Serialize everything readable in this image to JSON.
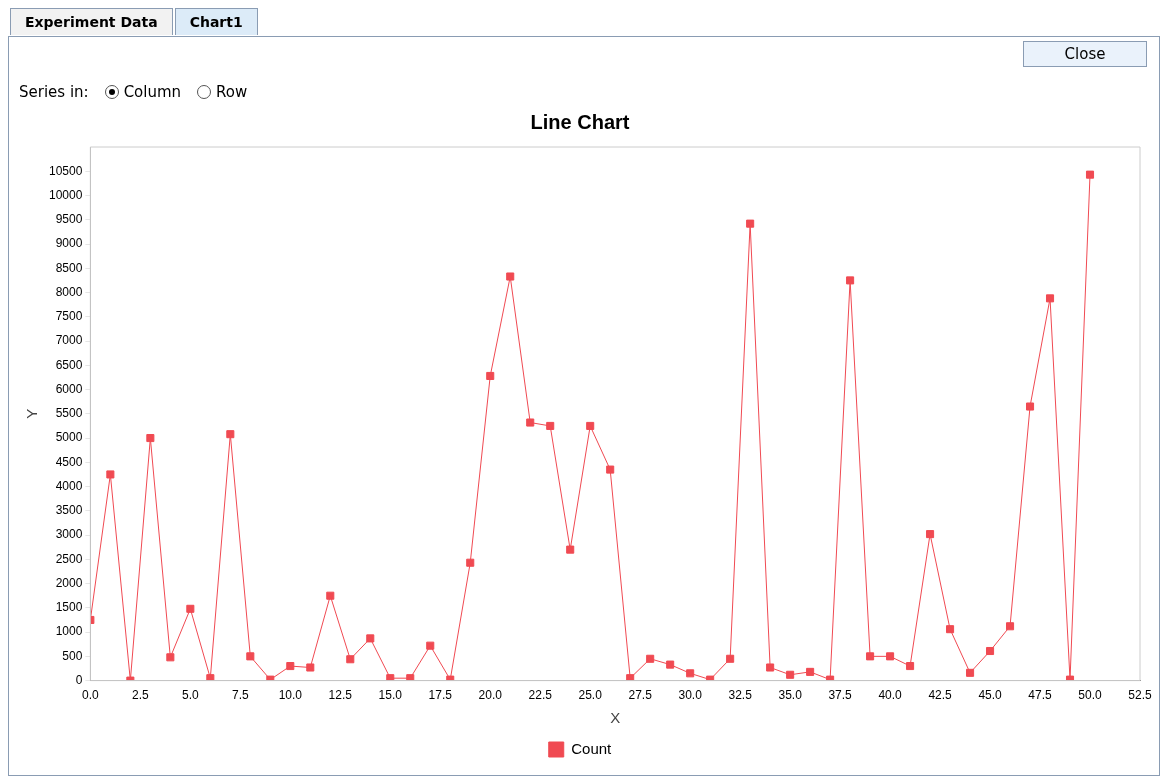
{
  "chart_data": {
    "type": "line",
    "title": "Line Chart",
    "xlabel": "X",
    "ylabel": "Y",
    "annotations": [
      "Experiment Data",
      "Chart1",
      "Close",
      "Series in:",
      "Column",
      "Row"
    ],
    "x": [
      0,
      1,
      2,
      3,
      4,
      5,
      6,
      7,
      8,
      9,
      10,
      11,
      12,
      13,
      14,
      15,
      16,
      17,
      18,
      19,
      20,
      21,
      22,
      23,
      24,
      25,
      26,
      27,
      28,
      29,
      30,
      31,
      32,
      33,
      34,
      35,
      36,
      37,
      38,
      39,
      40,
      41,
      42,
      43,
      44,
      45,
      46,
      47,
      48,
      49,
      50
    ],
    "series": [
      {
        "name": "Count",
        "color": "#f04a52",
        "values": [
          1250,
          4250,
          0,
          5000,
          480,
          1480,
          50,
          5080,
          500,
          20,
          300,
          270,
          1750,
          440,
          870,
          50,
          50,
          720,
          20,
          2430,
          6280,
          8330,
          5320,
          5250,
          2700,
          5250,
          4350,
          50,
          450,
          330,
          150,
          20,
          450,
          9420,
          270,
          120,
          180,
          20,
          8250,
          500,
          500,
          300,
          3020,
          1060,
          160,
          610,
          1120,
          5650,
          7880,
          20,
          10430
        ]
      }
    ],
    "xlim": [
      0,
      52.5
    ],
    "xticks": [
      {
        "value": 0,
        "label": "0.0"
      },
      {
        "value": 2.5,
        "label": "2.5"
      },
      {
        "value": 5,
        "label": "5.0"
      },
      {
        "value": 7.5,
        "label": "7.5"
      },
      {
        "value": 10,
        "label": "10.0"
      },
      {
        "value": 12.5,
        "label": "12.5"
      },
      {
        "value": 15,
        "label": "15.0"
      },
      {
        "value": 17.5,
        "label": "17.5"
      },
      {
        "value": 20,
        "label": "20.0"
      },
      {
        "value": 22.5,
        "label": "22.5"
      },
      {
        "value": 25,
        "label": "25.0"
      },
      {
        "value": 27.5,
        "label": "27.5"
      },
      {
        "value": 30,
        "label": "30.0"
      },
      {
        "value": 32.5,
        "label": "32.5"
      },
      {
        "value": 35,
        "label": "35.0"
      },
      {
        "value": 37.5,
        "label": "37.5"
      },
      {
        "value": 40,
        "label": "40.0"
      },
      {
        "value": 42.5,
        "label": "42.5"
      },
      {
        "value": 45,
        "label": "45.0"
      },
      {
        "value": 47.5,
        "label": "47.5"
      },
      {
        "value": 50,
        "label": "50.0"
      },
      {
        "value": 52.5,
        "label": "52.5"
      }
    ],
    "ylim": [
      0,
      11000
    ],
    "yticks": [
      0,
      500,
      1000,
      1500,
      2000,
      2500,
      3000,
      3500,
      4000,
      4500,
      5000,
      5500,
      6000,
      6500,
      7000,
      7500,
      8000,
      8500,
      9000,
      9500,
      10000,
      10500
    ],
    "legend": "bottom",
    "marker": "square",
    "line_style": "solid",
    "grid": false
  }
}
